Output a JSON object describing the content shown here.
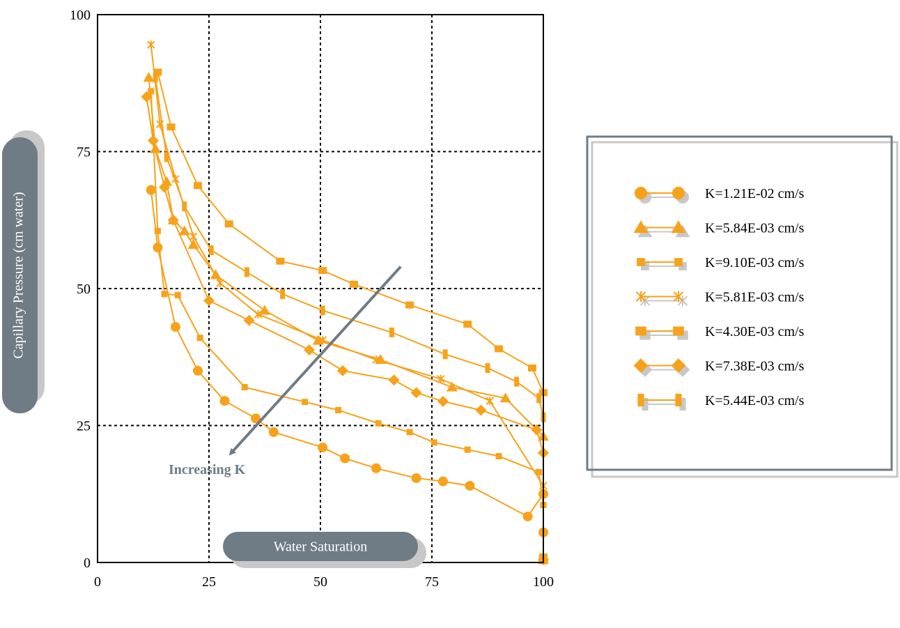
{
  "chart_data": {
    "type": "line",
    "title": "",
    "xlabel": "Water Saturation",
    "ylabel": "Capillary Pressure (cm water)",
    "xlim": [
      0,
      100
    ],
    "ylim": [
      0,
      100
    ],
    "xticks": [
      0,
      25,
      50,
      75,
      100
    ],
    "yticks": [
      0,
      25,
      50,
      75,
      100
    ],
    "grid": "dashed, major ticks",
    "legend_position": "right",
    "series_color": "#f7a21b",
    "marker_shadow_color": "#c8c8c8",
    "annotation": {
      "text": "Increasing K",
      "color": "#6f7b85",
      "from": [
        68,
        54
      ],
      "to": [
        30,
        20
      ]
    },
    "series": [
      {
        "name": "K=1.21E-02 cm/s",
        "marker": "circle",
        "x": [
          12,
          13.5,
          17.5,
          22.5,
          28.5,
          35.5,
          39.5,
          50.5,
          55.5,
          62.5,
          71.5,
          77.5,
          83.5,
          96.5,
          100,
          100,
          100
        ],
        "y": [
          68,
          57.5,
          43,
          35,
          29.5,
          26.3,
          23.8,
          21,
          19,
          17.2,
          15.4,
          14.8,
          14,
          8.4,
          12.5,
          5.5,
          0.5
        ]
      },
      {
        "name": "K=5.84E-03 cm/s",
        "marker": "triangle",
        "x": [
          11.5,
          13,
          15.5,
          17,
          19.5,
          21.5,
          26.5,
          37.5,
          49.5,
          63.5,
          79.5,
          91.5,
          100,
          100
        ],
        "y": [
          88.5,
          75.5,
          69.5,
          62.5,
          60.5,
          58,
          52.5,
          46,
          40.5,
          37,
          32,
          30,
          23,
          0.5
        ]
      },
      {
        "name": "K=9.10E-03 cm/s",
        "marker": "square-small",
        "x": [
          12,
          13.5,
          15,
          18,
          23,
          33,
          46.5,
          54,
          63,
          70,
          75.5,
          83,
          90,
          99,
          100,
          100
        ],
        "y": [
          86,
          60.5,
          49,
          48.8,
          41,
          32,
          29.3,
          27.8,
          25.4,
          23.8,
          21.9,
          20.6,
          19.4,
          16.5,
          10.5,
          0.5
        ]
      },
      {
        "name": "K=5.81E-03 cm/s",
        "marker": "star",
        "x": [
          12,
          14,
          17.5,
          21.5,
          27.5,
          36,
          50.5,
          62.5,
          77,
          88,
          100,
          100
        ],
        "y": [
          94.5,
          80,
          70,
          59.5,
          51,
          45.3,
          40.6,
          37,
          33.5,
          29.5,
          14,
          0.5
        ]
      },
      {
        "name": "K=4.30E-03 cm/s",
        "marker": "square",
        "x": [
          13.5,
          16.5,
          22.5,
          29.5,
          41,
          50.5,
          57.5,
          70,
          83,
          90,
          97.5,
          100,
          100
        ],
        "y": [
          89.5,
          79.5,
          68.8,
          61.8,
          55,
          53.3,
          50.8,
          47,
          43.5,
          39,
          35.5,
          31,
          1
        ]
      },
      {
        "name": "K=7.38E-03 cm/s",
        "marker": "diamond",
        "x": [
          11,
          12.5,
          15,
          17,
          25,
          34,
          47.5,
          55,
          66.5,
          71.5,
          77.5,
          86,
          98.5,
          100,
          100
        ],
        "y": [
          85,
          77,
          68.5,
          62.5,
          47.8,
          44.2,
          38.8,
          35,
          33.3,
          31,
          29.4,
          27.8,
          24.2,
          20,
          0.5
        ]
      },
      {
        "name": "K=5.44E-03 cm/s",
        "marker": "bar",
        "x": [
          13,
          15.5,
          19.5,
          25.5,
          33.5,
          41.5,
          50.5,
          66,
          78,
          87.5,
          94,
          99,
          100,
          100
        ],
        "y": [
          88.5,
          74,
          65,
          57,
          53,
          49,
          46,
          42,
          38,
          35.5,
          33,
          30,
          26.5,
          0.5
        ]
      }
    ]
  }
}
